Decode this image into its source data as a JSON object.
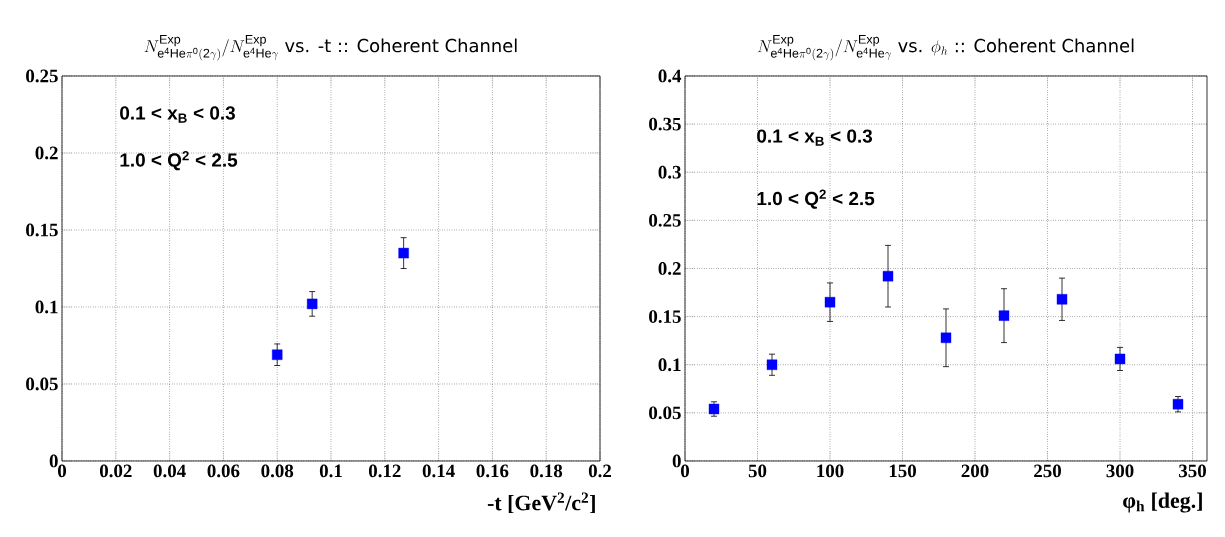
{
  "chart_data": [
    {
      "type": "scatter",
      "title": "N^{\\mathrm{Exp}}_{\\mathrm{e^{4}He\\pi^{0}(2\\gamma)}}/N^{\\mathrm{Exp}}_{\\mathrm{e^{4}He\\gamma}}\\ \\mbox{vs. -t :: Coherent Channel}",
      "xlabel": "-t [GeV$^{2}$/c$^{2}$]",
      "x": [
        0.08,
        0.093,
        0.127
      ],
      "values": [
        0.069,
        0.102,
        0.135
      ],
      "errors": [
        0.007,
        0.008,
        0.01
      ],
      "color": "#0000ff",
      "marker": "square",
      "xlim": [
        0,
        0.2
      ],
      "xticks": [
        0,
        0.02,
        0.04,
        0.06,
        0.08,
        0.1,
        0.12,
        0.14,
        0.16,
        0.18,
        0.2
      ],
      "ylim": [
        0,
        0.25
      ],
      "yticks": [
        0,
        0.05,
        0.1,
        0.15,
        0.2,
        0.25
      ],
      "grid": true,
      "annotations": [
        "0.1 < x$_{B}$ < 0.3",
        "1.0 < Q$^{2}$ < 2.5"
      ]
    },
    {
      "type": "scatter",
      "title": "N^{\\mathrm{Exp}}_{\\mathrm{e^{4}He\\pi^{0}(2\\gamma)}}/N^{\\mathrm{Exp}}_{\\mathrm{e^{4}He\\gamma}}\\ \\mbox{vs. }\\phi_{h}\\ \\mbox{:: Coherent Channel}",
      "xlabel": "φ$_{h}$ [deg.]",
      "x": [
        20,
        60,
        100,
        140,
        180,
        220,
        260,
        300,
        340
      ],
      "values": [
        0.054,
        0.1,
        0.165,
        0.192,
        0.128,
        0.151,
        0.168,
        0.106,
        0.059
      ],
      "errors": [
        0.0075,
        0.011,
        0.02,
        0.032,
        0.03,
        0.028,
        0.022,
        0.012,
        0.008
      ],
      "color": "#0000ff",
      "marker": "square",
      "xlim": [
        0,
        360
      ],
      "xticks": [
        0,
        50,
        100,
        150,
        200,
        250,
        300,
        350
      ],
      "ylim": [
        0,
        0.4
      ],
      "yticks": [
        0,
        0.05,
        0.1,
        0.15,
        0.2,
        0.25,
        0.3,
        0.35,
        0.4
      ],
      "grid": true,
      "annotations": [
        "0.1 < x$_{B}$ < 0.3",
        "1.0 < Q$^{2}$ < 2.5"
      ]
    }
  ]
}
